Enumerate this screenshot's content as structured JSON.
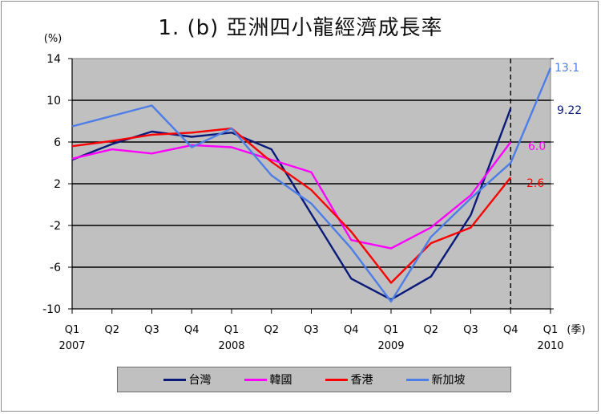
{
  "title": "1. (b) 亞洲四小龍經濟成長率",
  "chart_data": {
    "type": "line",
    "title": "1. (b) 亞洲四小龍經濟成長率",
    "ylabel": "(%)",
    "xlabel_unit": "(季)",
    "ylim": [
      -10,
      14
    ],
    "yticks": [
      14,
      10,
      6,
      2,
      -2,
      -6,
      -10
    ],
    "categories": [
      "Q1",
      "Q2",
      "Q3",
      "Q4",
      "Q1",
      "Q2",
      "Q3",
      "Q4",
      "Q1",
      "Q2",
      "Q3",
      "Q4",
      "Q1"
    ],
    "year_labels": [
      {
        "label": "2007",
        "index": 0
      },
      {
        "label": "2008",
        "index": 4
      },
      {
        "label": "2009",
        "index": 8
      },
      {
        "label": "2010",
        "index": 12
      }
    ],
    "grid": true,
    "forecast_divider_index": 11,
    "legend_position": "bottom",
    "series": [
      {
        "name": "台灣",
        "color": "#0a1a7a",
        "values": [
          4.3,
          5.8,
          7.0,
          6.5,
          6.9,
          5.3,
          -0.9,
          -7.1,
          -9.1,
          -6.9,
          -1.0,
          9.22,
          null
        ],
        "end_label": "9.22"
      },
      {
        "name": "韓國",
        "color": "#ff00ff",
        "values": [
          4.4,
          5.3,
          4.9,
          5.7,
          5.5,
          4.3,
          3.1,
          -3.4,
          -4.2,
          -2.2,
          0.9,
          6.0,
          null
        ],
        "end_label": "6.0"
      },
      {
        "name": "香港",
        "color": "#ff0000",
        "values": [
          5.6,
          6.1,
          6.7,
          6.9,
          7.3,
          4.1,
          1.4,
          -2.6,
          -7.5,
          -3.7,
          -2.2,
          2.6,
          null
        ],
        "end_label": "2.6"
      },
      {
        "name": "新加坡",
        "color": "#4d7de6",
        "values": [
          7.5,
          8.5,
          9.5,
          5.5,
          7.3,
          2.8,
          0.1,
          -4.2,
          -9.3,
          -3.1,
          0.6,
          4.0,
          13.1
        ],
        "end_label": "13.1"
      }
    ]
  }
}
